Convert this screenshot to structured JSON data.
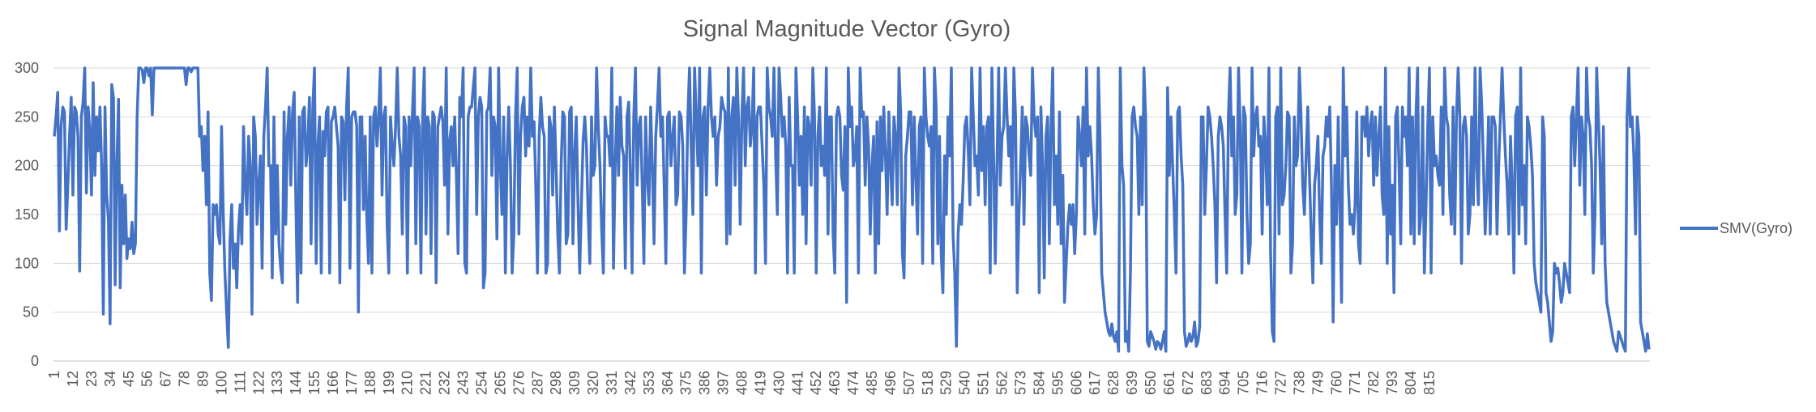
{
  "chart_data": {
    "type": "line",
    "title": "Signal Magnitude Vector (Gyro)",
    "xlabel": "",
    "ylabel": "",
    "ylim": [
      0,
      300
    ],
    "yticks": [
      0,
      50,
      100,
      150,
      200,
      250,
      300
    ],
    "x_start": 1,
    "x_end": 821,
    "x_tick_step": 11,
    "grid": true,
    "legend_position": "right",
    "series": [
      {
        "name": "SMV(Gyro)",
        "color": "#4472C4",
        "values": [
          230,
          250,
          275,
          133,
          240,
          260,
          255,
          135,
          180,
          230,
          270,
          170,
          260,
          255,
          230,
          92,
          250,
          265,
          300,
          172,
          260,
          235,
          170,
          285,
          190,
          250,
          215,
          260,
          200,
          48,
          260,
          170,
          145,
          38,
          283,
          270,
          78,
          200,
          268,
          75,
          180,
          120,
          170,
          105,
          125,
          115,
          142,
          110,
          120,
          250,
          300,
          300,
          298,
          285,
          300,
          300,
          292,
          300,
          252,
          300,
          300,
          300,
          300,
          300,
          300,
          300,
          300,
          300,
          300,
          300,
          300,
          300,
          300,
          300,
          300,
          300,
          300,
          300,
          283,
          300,
          300,
          296,
          300,
          300,
          300,
          300,
          230,
          240,
          195,
          230,
          160,
          255,
          90,
          62,
          160,
          150,
          160,
          130,
          120,
          240,
          150,
          90,
          50,
          14,
          125,
          160,
          95,
          120,
          75,
          135,
          160,
          120,
          240,
          180,
          150,
          230,
          200,
          48,
          250,
          230,
          140,
          180,
          210,
          95,
          230,
          260,
          300,
          200,
          200,
          85,
          250,
          130,
          200,
          120,
          95,
          80,
          255,
          140,
          230,
          260,
          180,
          255,
          275,
          160,
          60,
          250,
          90,
          255,
          260,
          200,
          220,
          270,
          120,
          260,
          300,
          100,
          220,
          250,
          90,
          235,
          210,
          255,
          260,
          90,
          245,
          250,
          260,
          240,
          220,
          80,
          250,
          245,
          165,
          260,
          300,
          95,
          250,
          255,
          255,
          240,
          50,
          250,
          250,
          155,
          230,
          145,
          100,
          250,
          90,
          250,
          260,
          220,
          250,
          300,
          170,
          250,
          260,
          140,
          90,
          250,
          220,
          200,
          240,
          300,
          230,
          210,
          130,
          250,
          240,
          90,
          250,
          200,
          255,
          300,
          120,
          250,
          240,
          90,
          250,
          300,
          130,
          250,
          240,
          110,
          255,
          250,
          80,
          240,
          250,
          260,
          245,
          180,
          300,
          130,
          225,
          240,
          200,
          250,
          190,
          110,
          270,
          250,
          300,
          100,
          90,
          250,
          260,
          260,
          280,
          300,
          150,
          250,
          270,
          260,
          75,
          90,
          255,
          260,
          300,
          190,
          250,
          240,
          125,
          300,
          200,
          150,
          250,
          90,
          210,
          260,
          200,
          90,
          130,
          250,
          300,
          130,
          230,
          260,
          270,
          210,
          250,
          220,
          300,
          230,
          245,
          180,
          90,
          230,
          270,
          240,
          230,
          90,
          100,
          250,
          240,
          170,
          260,
          200,
          130,
          90,
          200,
          255,
          250,
          120,
          130,
          255,
          260,
          120,
          215,
          250,
          160,
          90,
          160,
          225,
          250,
          220,
          150,
          100,
          250,
          190,
          200,
          300,
          240,
          200,
          135,
          90,
          250,
          230,
          230,
          200,
          300,
          95,
          200,
          260,
          190,
          270,
          220,
          210,
          95,
          250,
          265,
          190,
          90,
          250,
          300,
          180,
          240,
          250,
          180,
          100,
          250,
          190,
          160,
          260,
          200,
          120,
          230,
          260,
          300,
          230,
          250,
          180,
          100,
          250,
          255,
          200,
          230,
          250,
          160,
          170,
          255,
          250,
          220,
          90,
          150,
          250,
          300,
          220,
          150,
          300,
          250,
          200,
          300,
          90,
          250,
          260,
          170,
          260,
          300,
          250,
          230,
          250,
          180,
          230,
          240,
          270,
          260,
          255,
          120,
          300,
          130,
          250,
          270,
          180,
          300,
          250,
          140,
          250,
          300,
          200,
          260,
          270,
          220,
          240,
          300,
          90,
          250,
          260,
          260,
          220,
          180,
          100,
          300,
          260,
          250,
          230,
          300,
          210,
          150,
          300,
          270,
          230,
          250,
          220,
          90,
          270,
          200,
          200,
          90,
          300,
          250,
          180,
          230,
          150,
          260,
          120,
          250,
          240,
          180,
          300,
          250,
          90,
          230,
          260,
          200,
          220,
          190,
          300,
          130,
          250,
          250,
          130,
          90,
          250,
          260,
          250,
          190,
          175,
          240,
          60,
          300,
          240,
          260,
          200,
          210,
          240,
          90,
          300,
          250,
          255,
          180,
          250,
          220,
          130,
          200,
          230,
          90,
          245,
          120,
          250,
          195,
          260,
          210,
          150,
          255,
          200,
          160,
          250,
          230,
          160,
          300,
          255,
          110,
          85,
          210,
          230,
          255,
          255,
          160,
          250,
          190,
          130,
          240,
          250,
          100,
          300,
          250,
          230,
          220,
          240,
          100,
          300,
          260,
          120,
          230,
          110,
          70,
          210,
          150,
          250,
          210,
          300,
          130,
          90,
          15,
          130,
          160,
          140,
          185,
          240,
          250,
          215,
          160,
          300,
          250,
          200,
          210,
          170,
          300,
          195,
          240,
          160,
          240,
          250,
          90,
          300,
          210,
          100,
          200,
          300,
          180,
          230,
          240,
          300,
          250,
          210,
          240,
          160,
          300,
          250,
          70,
          150,
          200,
          260,
          140,
          250,
          240,
          210,
          190,
          300,
          250,
          230,
          250,
          70,
          260,
          200,
          85,
          230,
          250,
          120,
          240,
          300,
          160,
          210,
          140,
          255,
          120,
          190,
          60,
          100,
          140,
          160,
          140,
          160,
          110,
          150,
          250,
          230,
          200,
          260,
          130,
          300,
          210,
          240,
          210,
          160,
          130,
          150,
          300,
          230,
          90,
          70,
          50,
          40,
          30,
          26,
          38,
          25,
          20,
          30,
          10,
          300,
          200,
          180,
          20,
          30,
          10,
          90,
          250,
          260,
          240,
          230,
          150,
          250,
          160,
          300,
          250,
          20,
          15,
          30,
          25,
          20,
          12,
          20,
          18,
          12,
          20,
          30,
          10,
          280,
          190,
          250,
          200,
          150,
          90,
          255,
          260,
          210,
          180,
          30,
          15,
          20,
          28,
          20,
          25,
          40,
          15,
          20,
          35,
          250,
          250,
          150,
          200,
          260,
          250,
          230,
          200,
          160,
          80,
          230,
          250,
          240,
          220,
          150,
          90,
          250,
          300,
          210,
          250,
          150,
          170,
          300,
          240,
          90,
          260,
          250,
          150,
          100,
          120,
          300,
          210,
          250,
          260,
          220,
          230,
          130,
          250,
          220,
          160,
          300,
          110,
          30,
          20,
          250,
          260,
          130,
          300,
          160,
          170,
          200,
          255,
          250,
          90,
          120,
          250,
          200,
          210,
          300,
          250,
          180,
          150,
          210,
          260,
          190,
          130,
          80,
          180,
          200,
          230,
          150,
          100,
          210,
          220,
          250,
          230,
          260,
          180,
          40,
          200,
          140,
          250,
          160,
          60,
          300,
          210,
          260,
          180,
          140,
          150,
          130,
          160,
          255,
          120,
          100,
          250,
          250,
          230,
          260,
          210,
          240,
          255,
          180,
          250,
          190,
          230,
          260,
          170,
          150,
          300,
          100,
          240,
          130,
          180,
          70,
          250,
          260,
          200,
          120,
          260,
          230,
          250,
          200,
          300,
          130,
          250,
          120,
          250,
          300,
          130,
          150,
          260,
          90,
          160,
          240,
          300,
          90,
          250,
          200,
          210,
          190,
          180,
          260,
          150,
          300,
          250,
          240,
          170,
          140,
          260,
          130,
          250,
          300,
          250,
          100,
          240,
          250,
          230,
          130,
          150,
          250,
          160,
          300,
          200,
          160,
          300,
          260,
          200,
          130,
          180,
          250,
          130,
          250,
          250,
          240,
          130,
          200,
          250,
          300,
          250,
          210,
          180,
          130,
          230,
          180,
          90,
          250,
          260,
          130,
          300,
          160,
          200,
          120,
          250,
          240,
          220,
          190,
          100,
          80,
          70,
          60,
          50,
          250,
          230,
          70,
          60,
          40,
          20,
          30,
          100,
          90,
          95,
          80,
          60,
          70,
          100,
          90,
          80,
          70,
          250,
          260,
          200,
          250,
          300,
          180,
          250,
          230,
          150,
          300,
          250,
          240,
          200,
          90,
          150,
          300,
          250,
          200,
          120,
          240,
          100,
          60,
          50,
          40,
          30,
          20,
          15,
          10,
          30,
          25,
          20,
          14,
          10,
          250,
          300,
          240,
          250,
          210,
          130,
          250,
          230,
          40,
          30,
          20,
          10,
          28,
          12
        ]
      }
    ]
  }
}
